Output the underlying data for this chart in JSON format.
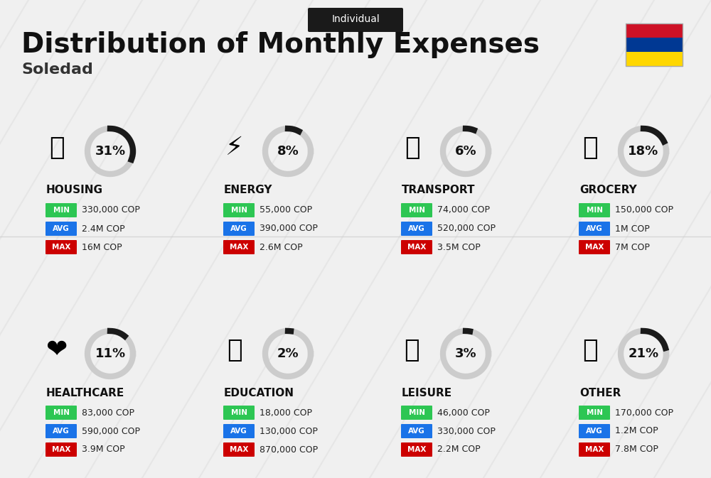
{
  "title": "Distribution of Monthly Expenses",
  "subtitle": "Soledad",
  "badge": "Individual",
  "bg_color": "#f0f0f0",
  "categories": [
    {
      "name": "HOUSING",
      "pct": 31,
      "min_val": "330,000 COP",
      "avg_val": "2.4M COP",
      "max_val": "16M COP",
      "col": 0,
      "row": 0
    },
    {
      "name": "ENERGY",
      "pct": 8,
      "min_val": "55,000 COP",
      "avg_val": "390,000 COP",
      "max_val": "2.6M COP",
      "col": 1,
      "row": 0
    },
    {
      "name": "TRANSPORT",
      "pct": 6,
      "min_val": "74,000 COP",
      "avg_val": "520,000 COP",
      "max_val": "3.5M COP",
      "col": 2,
      "row": 0
    },
    {
      "name": "GROCERY",
      "pct": 18,
      "min_val": "150,000 COP",
      "avg_val": "1M COP",
      "max_val": "7M COP",
      "col": 3,
      "row": 0
    },
    {
      "name": "HEALTHCARE",
      "pct": 11,
      "min_val": "83,000 COP",
      "avg_val": "590,000 COP",
      "max_val": "3.9M COP",
      "col": 0,
      "row": 1
    },
    {
      "name": "EDUCATION",
      "pct": 2,
      "min_val": "18,000 COP",
      "avg_val": "130,000 COP",
      "max_val": "870,000 COP",
      "col": 1,
      "row": 1
    },
    {
      "name": "LEISURE",
      "pct": 3,
      "min_val": "46,000 COP",
      "avg_val": "330,000 COP",
      "max_val": "2.2M COP",
      "col": 2,
      "row": 1
    },
    {
      "name": "OTHER",
      "pct": 21,
      "min_val": "170,000 COP",
      "avg_val": "1.2M COP",
      "max_val": "7.8M COP",
      "col": 3,
      "row": 1
    }
  ],
  "color_min": "#2dc653",
  "color_avg": "#1a73e8",
  "color_max": "#cc0000",
  "arc_color_active": "#1a1a1a",
  "arc_color_bg": "#cccccc",
  "flag_colors": [
    "#FFD700",
    "#003893",
    "#CE1126"
  ],
  "colombia_flag": true
}
